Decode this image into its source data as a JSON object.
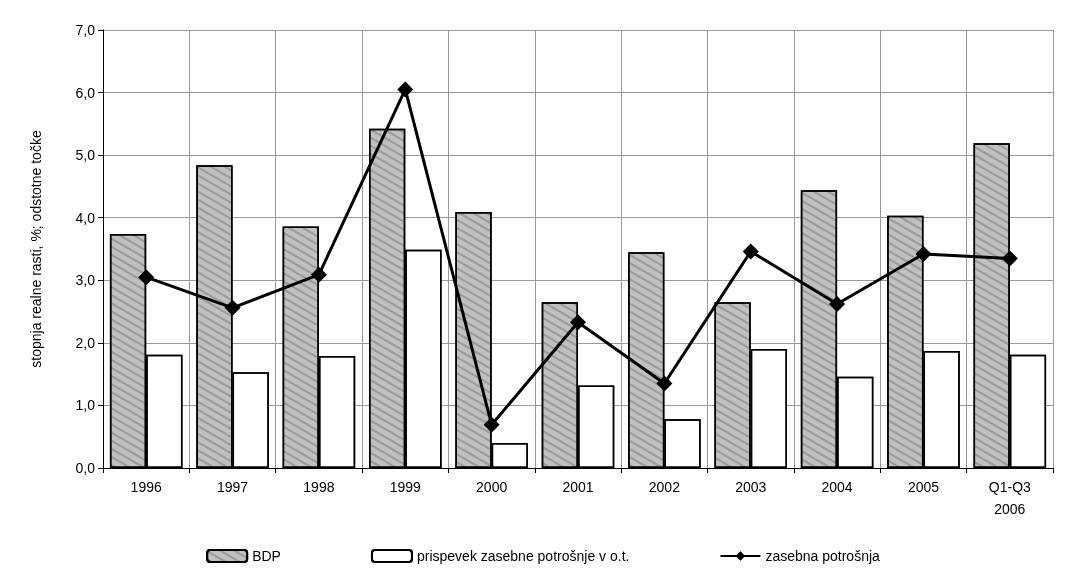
{
  "chart_data": {
    "type": "bar",
    "ylabel": "stopnja realne rasti, %; odstotne točke",
    "categories": [
      "1996",
      "1997",
      "1998",
      "1999",
      "2000",
      "2001",
      "2002",
      "2003",
      "2004",
      "2005",
      "Q1-Q3\n2006"
    ],
    "series": [
      {
        "name": "BDP",
        "color": "#c0c0c0",
        "values": [
          3.74,
          4.84,
          3.86,
          5.42,
          4.09,
          2.65,
          3.45,
          2.65,
          4.44,
          4.03,
          5.19
        ]
      },
      {
        "name": "prispevek zasebne potrošnje v o.t.",
        "color": "#ffffff",
        "values": [
          1.81,
          1.53,
          1.79,
          3.49,
          0.4,
          1.32,
          0.78,
          1.9,
          1.46,
          1.87,
          1.81
        ]
      },
      {
        "name": "zasebna potrošnja",
        "type": "line",
        "color": "#000000",
        "marker": "diamond",
        "line_style": "solid",
        "values": [
          3.05,
          2.56,
          3.09,
          6.05,
          0.69,
          2.33,
          1.35,
          3.46,
          2.62,
          3.42,
          3.35
        ]
      }
    ],
    "ylim": [
      0,
      7
    ],
    "yticks": [
      {
        "value": 0,
        "label": "0,0"
      },
      {
        "value": 1,
        "label": "1,0"
      },
      {
        "value": 2,
        "label": "2,0"
      },
      {
        "value": 3,
        "label": "3,0"
      },
      {
        "value": 4,
        "label": "4,0"
      },
      {
        "value": 5,
        "label": "5,0"
      },
      {
        "value": 6,
        "label": "6,0"
      },
      {
        "value": 7,
        "label": "7,0"
      }
    ],
    "grid": true,
    "legend": "bottom"
  }
}
